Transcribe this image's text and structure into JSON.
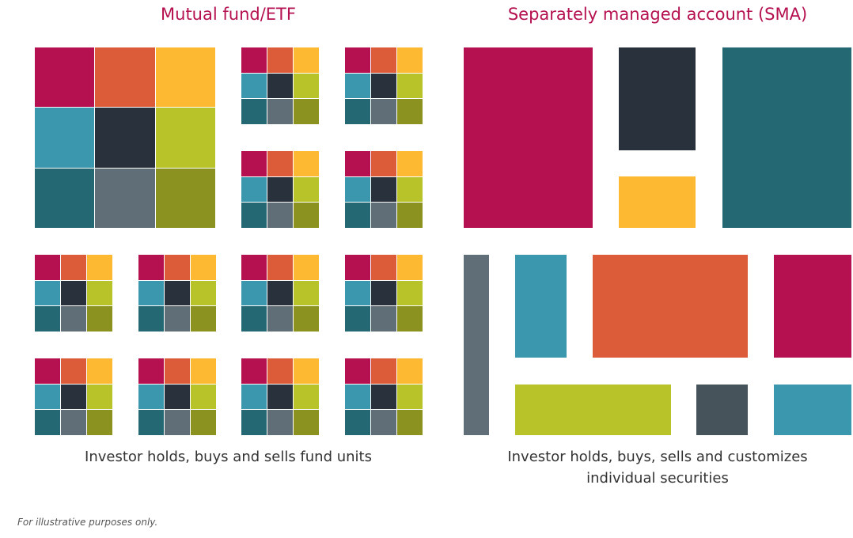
{
  "headings": {
    "mutual_fund": "Mutual fund/ETF",
    "sma": "Separately managed account (SMA)"
  },
  "captions": {
    "mutual_fund": "Investor holds, buys and sells fund units",
    "sma_line1": "Investor holds, buys, sells and customizes",
    "sma_line2": "individual securities"
  },
  "footnote": "For illustrative purposes only.",
  "colors": {
    "crimson": "#b5104f",
    "orange": "#dc5b39",
    "yellow": "#fcb931",
    "light_teal": "#3b97ad",
    "charcoal": "#29323c",
    "lime": "#b8c229",
    "dark_teal": "#246873",
    "slate": "#5f6e77",
    "olive": "#8b921f",
    "dark_slate": "#47535b",
    "heading": "#b5104f"
  },
  "fund_cell_order": [
    "crimson",
    "orange",
    "yellow",
    "light_teal",
    "charcoal",
    "lime",
    "dark_teal",
    "slate",
    "olive"
  ],
  "fund_count": 13,
  "sma_security_colors": [
    "crimson",
    "charcoal",
    "yellow",
    "dark_teal",
    "slate",
    "light_teal",
    "orange",
    "crimson",
    "lime",
    "dark_slate",
    "light_teal"
  ]
}
